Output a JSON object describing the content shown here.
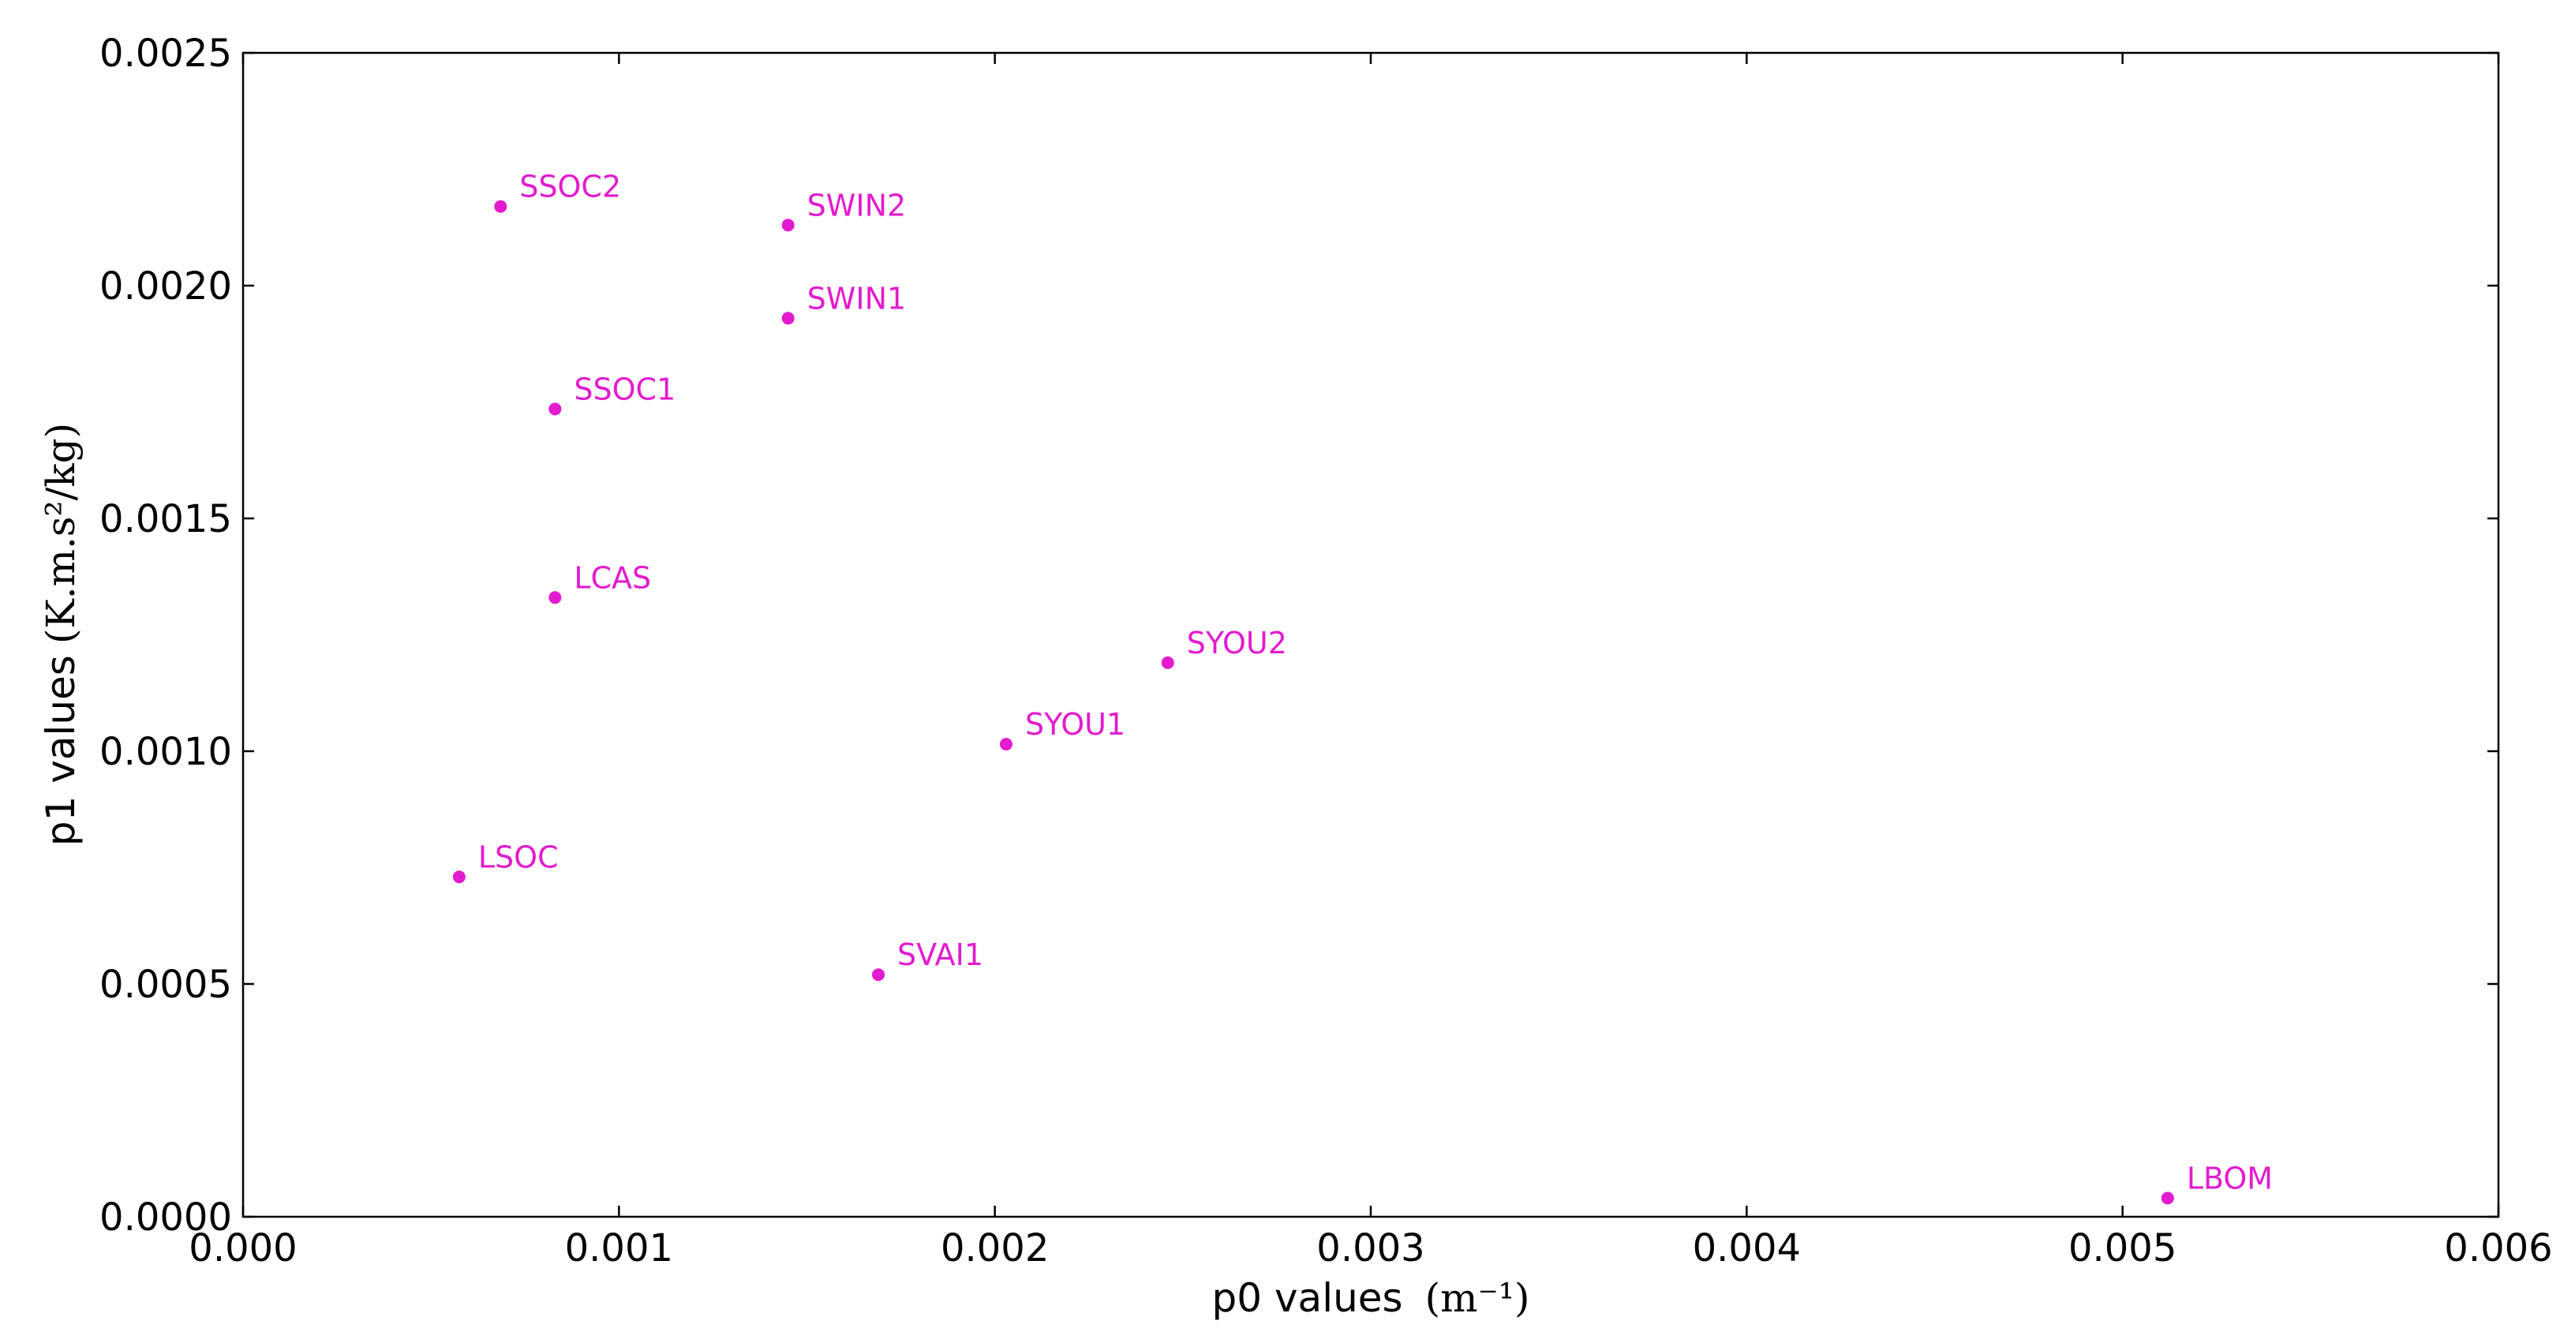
{
  "chart_data": {
    "type": "scatter",
    "title": "",
    "xlabel": "p0 values",
    "xlabel_unit": "(m⁻¹)",
    "ylabel": "p1 values",
    "ylabel_unit": "(K.m.s²/kg)",
    "xlim": [
      0,
      0.006
    ],
    "ylim": [
      0,
      0.0025
    ],
    "x_ticks": [
      "0.000",
      "0.001",
      "0.002",
      "0.003",
      "0.004",
      "0.005",
      "0.006"
    ],
    "y_ticks": [
      "0.0000",
      "0.0005",
      "0.0010",
      "0.0015",
      "0.0020",
      "0.0025"
    ],
    "grid": false,
    "legend": "none",
    "marker_color": "#e21bce",
    "points": [
      {
        "label": "SSOC2",
        "x": 0.000685,
        "y": 0.00217
      },
      {
        "label": "SWIN2",
        "x": 0.00145,
        "y": 0.00213
      },
      {
        "label": "SWIN1",
        "x": 0.00145,
        "y": 0.00193
      },
      {
        "label": "SSOC1",
        "x": 0.00083,
        "y": 0.001735
      },
      {
        "label": "LCAS",
        "x": 0.00083,
        "y": 0.00133
      },
      {
        "label": "SYOU2",
        "x": 0.00246,
        "y": 0.00119
      },
      {
        "label": "SYOU1",
        "x": 0.00203,
        "y": 0.001015
      },
      {
        "label": "LSOC",
        "x": 0.000575,
        "y": 0.00073
      },
      {
        "label": "SVAI1",
        "x": 0.00169,
        "y": 0.00052
      },
      {
        "label": "LBOM",
        "x": 0.00512,
        "y": 4e-05
      }
    ]
  }
}
